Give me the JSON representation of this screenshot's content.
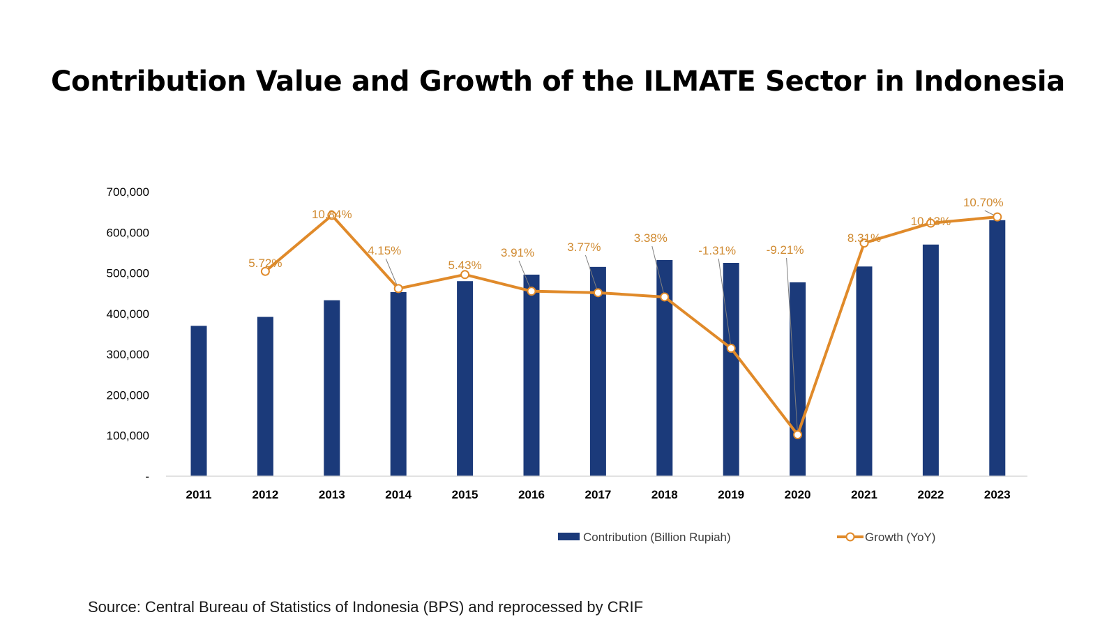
{
  "source_note": "Source: Central Bureau of Statistics of Indonesia (BPS) and reprocessed by CRIF",
  "chart_data": {
    "type": "bar",
    "title": "Contribution Value and Growth of the ILMATE Sector in Indonesia",
    "categories": [
      "2011",
      "2012",
      "2013",
      "2014",
      "2015",
      "2016",
      "2017",
      "2018",
      "2019",
      "2020",
      "2021",
      "2022",
      "2023"
    ],
    "y_ticks": [
      "-",
      "100,000",
      "200,000",
      "300,000",
      "400,000",
      "500,000",
      "600,000",
      "700,000"
    ],
    "ylim": [
      0,
      700000
    ],
    "grid": false,
    "legend_position": "bottom",
    "series": [
      {
        "name": "Contribution (Billion Rupiah)",
        "type": "bar",
        "color": "#1b3a7a",
        "axis": "primary",
        "values": [
          370000,
          392000,
          433000,
          453000,
          480000,
          496000,
          515000,
          532000,
          525000,
          477000,
          516000,
          570000,
          630000
        ]
      },
      {
        "name": "Growth (YoY)",
        "type": "line",
        "color": "#e08a2a",
        "marker": "open-circle",
        "axis": "secondary",
        "values": [
          null,
          5.72,
          10.84,
          4.15,
          5.43,
          3.91,
          3.77,
          3.38,
          -1.31,
          -9.21,
          8.31,
          10.13,
          10.7
        ],
        "labels": [
          null,
          "5.72%",
          "10.84%",
          "4.15%",
          "5.43%",
          "3.91%",
          "3.77%",
          "3.38%",
          "-1.31%",
          "-9.21%",
          "8.31%",
          "10.13%",
          "10.70%"
        ],
        "secondary_ylim": [
          -13,
          13
        ]
      }
    ],
    "colors": {
      "bar": "#1b3a7a",
      "line": "#e08a2a",
      "label": "#d08a30",
      "axis": "#d9d9d9",
      "leader": "#7f7f7f"
    }
  }
}
